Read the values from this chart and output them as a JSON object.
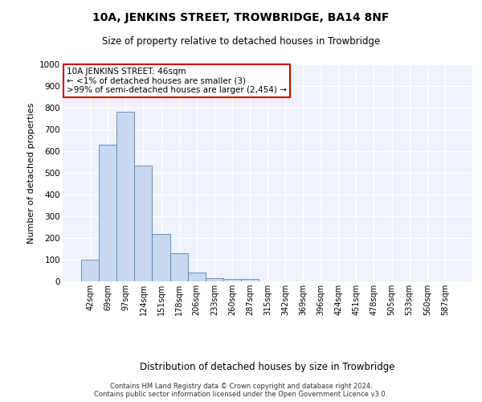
{
  "title": "10A, JENKINS STREET, TROWBRIDGE, BA14 8NF",
  "subtitle": "Size of property relative to detached houses in Trowbridge",
  "xlabel": "Distribution of detached houses by size in Trowbridge",
  "ylabel": "Number of detached properties",
  "footer_line1": "Contains HM Land Registry data © Crown copyright and database right 2024.",
  "footer_line2": "Contains public sector information licensed under the Open Government Licence v3.0.",
  "categories": [
    "42sqm",
    "69sqm",
    "97sqm",
    "124sqm",
    "151sqm",
    "178sqm",
    "206sqm",
    "233sqm",
    "260sqm",
    "287sqm",
    "315sqm",
    "342sqm",
    "369sqm",
    "396sqm",
    "424sqm",
    "451sqm",
    "478sqm",
    "505sqm",
    "533sqm",
    "560sqm",
    "587sqm"
  ],
  "values": [
    100,
    630,
    780,
    535,
    220,
    130,
    42,
    15,
    10,
    10,
    0,
    0,
    0,
    0,
    0,
    0,
    0,
    0,
    0,
    0,
    0
  ],
  "bar_color": "#c8d8f0",
  "bar_edge_color": "#5580bb",
  "background_color": "#eef2fa",
  "grid_color": "#ffffff",
  "annotation_text": "10A JENKINS STREET: 46sqm\n← <1% of detached houses are smaller (3)\n>99% of semi-detached houses are larger (2,454) →",
  "annotation_box_color": "#ffffff",
  "annotation_edge_color": "#cc0000",
  "ylim": [
    0,
    1000
  ],
  "yticks": [
    0,
    100,
    200,
    300,
    400,
    500,
    600,
    700,
    800,
    900,
    1000
  ],
  "title_fontsize": 10,
  "subtitle_fontsize": 8.5,
  "ylabel_fontsize": 8,
  "xlabel_fontsize": 8.5,
  "tick_fontsize": 7,
  "annotation_fontsize": 7.5,
  "footer_fontsize": 6
}
